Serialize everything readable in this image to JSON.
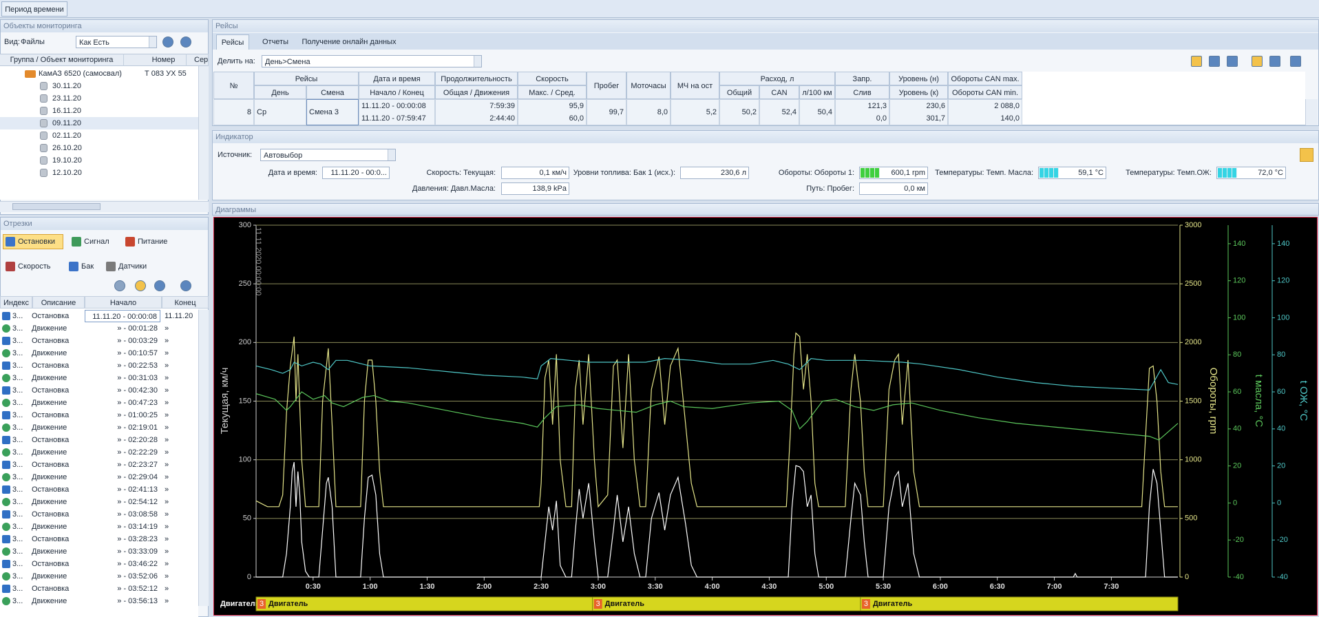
{
  "toolbar": {
    "period_button": "Период времени"
  },
  "objects": {
    "title": "Объекты мониторинга",
    "view_label": "Вид:",
    "view_value": "Файлы",
    "combo": "Как Есть",
    "columns": [
      "Группа / Объект мониторинга",
      "Номер",
      "Сер"
    ],
    "vehicle": "КамАЗ 6520 (самосвал)",
    "vehicle_number": "Т 083 УХ 55",
    "dates": [
      "30.11.20",
      "23.11.20",
      "16.11.20",
      "09.11.20",
      "02.11.20",
      "26.10.20",
      "19.10.20",
      "12.10.20"
    ]
  },
  "segments": {
    "title": "Отрезки",
    "buttons": [
      "Остановки",
      "Сигнал",
      "Питание",
      "Скорость",
      "Бак",
      "Датчики"
    ],
    "columns": [
      "Индекс",
      "Описание",
      "Начало",
      "Конец"
    ],
    "rows": [
      [
        "3...",
        "Остановка",
        "11.11.20 - 00:00:08",
        "11.11.20"
      ],
      [
        "3...",
        "Движение",
        "» - 00:01:28",
        "»"
      ],
      [
        "3...",
        "Остановка",
        "» - 00:03:29",
        "»"
      ],
      [
        "3...",
        "Движение",
        "» - 00:10:57",
        "»"
      ],
      [
        "3...",
        "Остановка",
        "» - 00:22:53",
        "»"
      ],
      [
        "3...",
        "Движение",
        "» - 00:31:03",
        "»"
      ],
      [
        "3...",
        "Остановка",
        "» - 00:42:30",
        "»"
      ],
      [
        "3...",
        "Движение",
        "» - 00:47:23",
        "»"
      ],
      [
        "3...",
        "Остановка",
        "» - 01:00:25",
        "»"
      ],
      [
        "3...",
        "Движение",
        "» - 02:19:01",
        "»"
      ],
      [
        "3...",
        "Остановка",
        "» - 02:20:28",
        "»"
      ],
      [
        "3...",
        "Движение",
        "» - 02:22:29",
        "»"
      ],
      [
        "3...",
        "Остановка",
        "» - 02:23:27",
        "»"
      ],
      [
        "3...",
        "Движение",
        "» - 02:29:04",
        "»"
      ],
      [
        "3...",
        "Остановка",
        "» - 02:41:13",
        "»"
      ],
      [
        "3...",
        "Движение",
        "» - 02:54:12",
        "»"
      ],
      [
        "3...",
        "Остановка",
        "» - 03:08:58",
        "»"
      ],
      [
        "3...",
        "Движение",
        "» - 03:14:19",
        "»"
      ],
      [
        "3...",
        "Остановка",
        "» - 03:28:23",
        "»"
      ],
      [
        "3...",
        "Движение",
        "» - 03:33:09",
        "»"
      ],
      [
        "3...",
        "Остановка",
        "» - 03:46:22",
        "»"
      ],
      [
        "3...",
        "Движение",
        "» - 03:52:06",
        "»"
      ],
      [
        "3...",
        "Остановка",
        "» - 03:52:12",
        "»"
      ],
      [
        "3...",
        "Движение",
        "» - 03:56:13",
        "»"
      ]
    ]
  },
  "trips": {
    "title": "Рейсы",
    "tabs": [
      "Рейсы",
      "Отчеты",
      "Получение онлайн данных"
    ],
    "split_label": "Делить на:",
    "split_value": "День>Смена",
    "header_top": [
      "№",
      "Рейсы",
      "Дата и время",
      "Продолжительность",
      "Скорость",
      "Пробег",
      "Моточасы",
      "МЧ на ост",
      "Расход, л",
      "Запр.",
      "Уровень (н)",
      "Обороты CAN max."
    ],
    "header_bottom": [
      "День",
      "Смена",
      "Начало / Конец",
      "Общая / Движения",
      "Макс. / Сред.",
      "Общий",
      "CAN",
      "л/100 км",
      "Слив",
      "Уровень (к)",
      "Обороты CAN min."
    ],
    "row": [
      [
        "8"
      ],
      [
        "Ср"
      ],
      [
        "Смена 3"
      ],
      [
        "11.11.20 - 00:00:08",
        "11.11.20 - 07:59:47"
      ],
      [
        "7:59:39",
        "2:44:40"
      ],
      [
        "95,9",
        "60,0"
      ],
      [
        "99,7"
      ],
      [
        "8,0"
      ],
      [
        "5,2"
      ],
      [
        "50,2"
      ],
      [
        "52,4"
      ],
      [
        "50,4"
      ],
      [
        "121,3",
        "0,0"
      ],
      [
        "230,6",
        "301,7"
      ],
      [
        "2 088,0",
        "140,0"
      ]
    ]
  },
  "indicator": {
    "title": "Индикатор",
    "source_label": "Источник:",
    "source_value": "Автовыбор",
    "fields": [
      {
        "label": "Дата и время:",
        "value": "11.11.20 - 00:0..."
      },
      {
        "label": "Скорость: Текущая:",
        "value": "0,1 км/ч"
      },
      {
        "label": "Уровни топлива: Бак 1 (исх.):",
        "value": "230,6 л"
      },
      {
        "label": "Обороты: Обороты 1:",
        "value": "600,1 rpm"
      },
      {
        "label": "Температуры: Темп. Масла:",
        "value": "59,1 °C"
      },
      {
        "label": "Температуры: Темп.ОЖ:",
        "value": "72,0 °C"
      },
      {
        "label": "Давления: Давл.Масла:",
        "value": "138,9 kPa"
      },
      {
        "label": "Путь: Пробег:",
        "value": "0,0 км"
      }
    ]
  },
  "chart_data": {
    "type": "line",
    "title": "Диаграммы",
    "date_label": "11.11.2020 00:00:00",
    "grid": true,
    "xlim": [
      0,
      485
    ],
    "xticks": [
      {
        "value": 30,
        "label": "0:30"
      },
      {
        "value": 60,
        "label": "1:00"
      },
      {
        "value": 90,
        "label": "1:30"
      },
      {
        "value": 120,
        "label": "2:00"
      },
      {
        "value": 150,
        "label": "2:30"
      },
      {
        "value": 180,
        "label": "3:00"
      },
      {
        "value": 210,
        "label": "3:30"
      },
      {
        "value": 240,
        "label": "4:00"
      },
      {
        "value": 270,
        "label": "4:30"
      },
      {
        "value": 300,
        "label": "5:00"
      },
      {
        "value": 330,
        "label": "5:30"
      },
      {
        "value": 360,
        "label": "6:00"
      },
      {
        "value": 390,
        "label": "6:30"
      },
      {
        "value": 420,
        "label": "7:00"
      },
      {
        "value": 450,
        "label": "7:30"
      }
    ],
    "ylim": [
      0,
      300
    ],
    "yticks": [
      0,
      50,
      100,
      150,
      200,
      250,
      300
    ],
    "ylabel": "Текущая, км/ч",
    "y2lim": [
      0,
      3000
    ],
    "y2ticks": [
      0,
      500,
      1000,
      1500,
      2000,
      2500,
      3000
    ],
    "y2label": "Обороты, rpm",
    "y3lim": [
      -40,
      150
    ],
    "y3ticks": [
      -40,
      -20,
      0,
      20,
      40,
      60,
      80,
      100,
      120,
      140
    ],
    "y3label": "t масла, °C",
    "y4lim": [
      -40,
      150
    ],
    "y4ticks": [
      -40,
      -20,
      0,
      20,
      40,
      60,
      80,
      100,
      120,
      140
    ],
    "y4label": "t ОЖ, °C",
    "series": [
      {
        "color": "#ffffff",
        "axis": "y",
        "x": [
          0,
          14,
          16,
          18,
          19,
          20,
          21,
          22,
          23,
          24,
          26,
          28,
          33,
          35,
          37,
          38,
          40,
          42,
          55,
          57,
          59,
          61,
          63,
          65,
          67,
          150,
          152,
          154,
          156,
          158,
          160,
          163,
          166,
          168,
          170,
          172,
          175,
          178,
          180,
          185,
          188,
          190,
          193,
          196,
          199,
          202,
          205,
          208,
          212,
          215,
          218,
          222,
          226,
          229,
          232,
          280,
          282,
          284,
          286,
          288,
          290,
          292,
          294,
          296,
          310,
          313,
          315,
          318,
          320,
          322,
          330,
          333,
          336,
          338,
          340,
          343,
          346,
          349,
          430,
          431,
          432,
          468,
          470,
          472,
          474,
          476,
          478,
          485
        ],
        "values": [
          0,
          0,
          20,
          60,
          90,
          98,
          60,
          90,
          70,
          30,
          5,
          0,
          0,
          40,
          80,
          85,
          60,
          0,
          0,
          50,
          85,
          87,
          70,
          20,
          0,
          0,
          30,
          60,
          40,
          65,
          10,
          0,
          0,
          40,
          75,
          50,
          80,
          30,
          0,
          0,
          40,
          70,
          30,
          60,
          20,
          0,
          0,
          50,
          72,
          40,
          70,
          85,
          45,
          10,
          0,
          0,
          60,
          95,
          94,
          90,
          60,
          70,
          20,
          0,
          0,
          50,
          80,
          70,
          30,
          0,
          0,
          60,
          85,
          90,
          60,
          80,
          20,
          0,
          0,
          3,
          0,
          0,
          60,
          92,
          80,
          40,
          0,
          0
        ]
      },
      {
        "color": "#e6e68a",
        "axis": "y2",
        "x": [
          0,
          6,
          12,
          14,
          16,
          18,
          20,
          21,
          22,
          24,
          26,
          33,
          35,
          37,
          38,
          40,
          42,
          55,
          57,
          59,
          61,
          63,
          65,
          67,
          149,
          150,
          152,
          154,
          156,
          158,
          160,
          163,
          166,
          168,
          170,
          172,
          175,
          178,
          180,
          185,
          188,
          190,
          193,
          196,
          199,
          202,
          205,
          208,
          212,
          215,
          218,
          222,
          226,
          229,
          232,
          279,
          281,
          283,
          284,
          286,
          288,
          290,
          292,
          294,
          296,
          310,
          313,
          315,
          318,
          320,
          322,
          330,
          333,
          336,
          338,
          340,
          343,
          346,
          349,
          466,
          468,
          470,
          472,
          474,
          476,
          478,
          485
        ],
        "values": [
          650,
          600,
          600,
          700,
          1400,
          1800,
          2050,
          1500,
          1900,
          1000,
          600,
          600,
          1500,
          1800,
          1950,
          1300,
          600,
          600,
          1500,
          1850,
          1850,
          1500,
          900,
          600,
          600,
          800,
          1700,
          1850,
          1300,
          1900,
          1000,
          600,
          600,
          1600,
          1850,
          1300,
          1900,
          1000,
          600,
          700,
          1800,
          1850,
          1100,
          1900,
          1000,
          600,
          600,
          1600,
          1880,
          1300,
          1800,
          1950,
          1300,
          800,
          600,
          600,
          1200,
          1900,
          2080,
          2050,
          1600,
          1900,
          1500,
          800,
          600,
          600,
          1600,
          1900,
          1500,
          900,
          600,
          600,
          1600,
          1850,
          1900,
          1300,
          1850,
          900,
          600,
          600,
          1200,
          1780,
          1800,
          1500,
          900,
          600,
          600
        ]
      },
      {
        "color": "#5cc85c",
        "axis": "y3",
        "x": [
          0,
          10,
          16,
          18,
          24,
          30,
          36,
          40,
          46,
          50,
          56,
          62,
          70,
          80,
          100,
          120,
          140,
          148,
          152,
          158,
          170,
          180,
          190,
          200,
          210,
          218,
          225,
          240,
          260,
          275,
          282,
          286,
          290,
          298,
          305,
          315,
          325,
          335,
          345,
          360,
          380,
          400,
          420,
          440,
          460,
          470,
          475,
          485
        ],
        "values": [
          59,
          56,
          50,
          52,
          60,
          56,
          58,
          54,
          52,
          54,
          57,
          58,
          55,
          54,
          50,
          46,
          43,
          41,
          46,
          52,
          53,
          51,
          50,
          49,
          53,
          55,
          52,
          51,
          54,
          55,
          50,
          40,
          44,
          55,
          56,
          52,
          50,
          53,
          54,
          50,
          46,
          43,
          41,
          39,
          37,
          36,
          34,
          43
        ]
      },
      {
        "color": "#4fc8c8",
        "axis": "y4",
        "x": [
          0,
          8,
          14,
          18,
          20,
          24,
          30,
          34,
          38,
          42,
          48,
          60,
          80,
          100,
          120,
          140,
          148,
          150,
          155,
          165,
          175,
          190,
          205,
          215,
          230,
          245,
          260,
          272,
          280,
          286,
          292,
          300,
          320,
          340,
          350,
          370,
          390,
          410,
          430,
          450,
          470,
          476,
          480,
          485
        ],
        "values": [
          74,
          72,
          70,
          72,
          76,
          74,
          76,
          75,
          72,
          77,
          77,
          74,
          73,
          71,
          69,
          68,
          67,
          74,
          78,
          77,
          76,
          76,
          76,
          78,
          77,
          75,
          75,
          77,
          75,
          72,
          78,
          77,
          77,
          76,
          75,
          72,
          68,
          65,
          63,
          62,
          61,
          72,
          65,
          64
        ]
      }
    ],
    "engine_row": {
      "label": "Двигатель",
      "segments": [
        {
          "start": 0,
          "badge": "3",
          "label": "Двигатель"
        },
        {
          "start": 177,
          "badge": "3",
          "label": "Двигатель"
        },
        {
          "start": 318,
          "badge": "3",
          "label": "Двигатель"
        }
      ]
    }
  }
}
